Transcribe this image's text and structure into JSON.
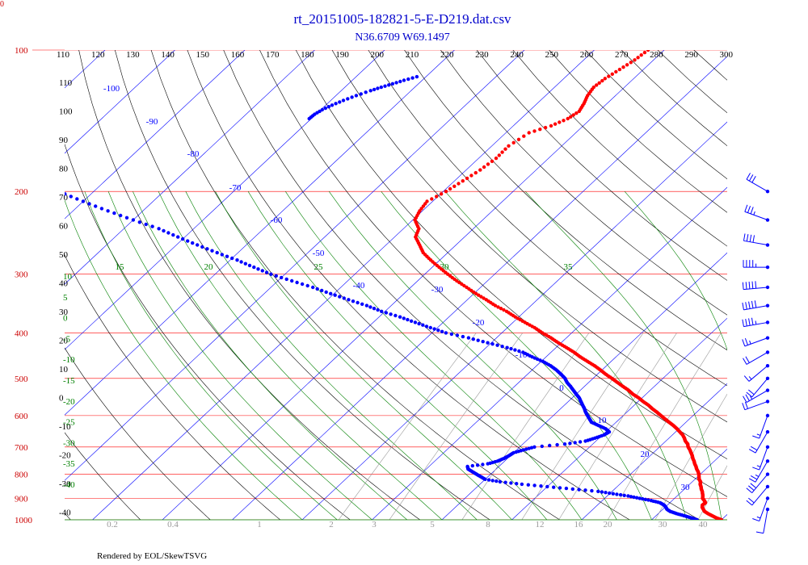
{
  "chart_data": {
    "type": "skew-t",
    "title": "rt_20151005-182821-5-E-D219.dat.csv",
    "subtitle": "N36.6709 W69.1497",
    "footer": "Rendered by EOL/SkewTSVG",
    "corner_label": "0",
    "plimits": [
      100,
      1000
    ],
    "pressure_ticks": [
      100,
      200,
      300,
      400,
      500,
      600,
      700,
      800,
      900,
      1000
    ],
    "top_temperature_ticks": [
      110,
      120,
      130,
      140,
      150,
      160,
      170,
      180,
      190,
      200,
      210,
      220,
      230,
      240,
      250,
      260,
      270,
      280,
      290,
      300
    ],
    "isotherms": [
      -100,
      -90,
      -80,
      -70,
      -60,
      -50,
      -40,
      -30,
      -20,
      -10,
      0,
      10,
      20,
      30,
      40
    ],
    "dry_adiabat_labels": [
      110,
      100,
      90,
      80,
      70,
      60,
      50,
      40,
      30,
      20,
      10,
      0,
      -10,
      -20,
      -30,
      -40
    ],
    "moist_adiabat_labels": [
      15,
      20,
      25,
      30,
      35,
      10,
      5,
      0,
      -5,
      -10,
      -15,
      -20,
      -25,
      -30,
      -35,
      -40
    ],
    "mixing_ratio_labels": [
      "0.2",
      "0.4",
      "1",
      "2",
      "3",
      "5",
      "8",
      "12",
      "16",
      "20",
      "30",
      "40"
    ],
    "temperature": {
      "name": "Temperature",
      "color": "#ff0000",
      "p": [
        1000,
        990,
        980,
        970,
        960,
        950,
        940,
        930,
        920,
        910,
        900,
        890,
        880,
        870,
        860,
        850,
        840,
        830,
        820,
        810,
        800,
        790,
        780,
        770,
        760,
        750,
        740,
        730,
        720,
        710,
        700,
        690,
        680,
        670,
        660,
        650,
        640,
        630,
        620,
        610,
        600,
        590,
        580,
        570,
        560,
        550,
        540,
        530,
        520,
        510,
        500,
        490,
        480,
        470,
        460,
        450,
        440,
        430,
        420,
        410,
        400,
        390,
        380,
        370,
        360,
        350,
        340,
        330,
        320,
        310,
        300,
        290,
        280,
        270,
        260,
        250,
        240,
        230,
        220,
        210,
        200,
        190,
        180,
        170,
        160,
        150,
        145,
        140,
        135,
        130,
        125,
        120,
        115,
        110,
        105,
        100,
        97,
        94,
        91,
        88,
        85,
        82,
        80
      ],
      "t": [
        20.0,
        18.9,
        18.0,
        17.1,
        16.3,
        15.8,
        15.3,
        15.0,
        15.1,
        14.6,
        14.0,
        13.7,
        13.3,
        12.9,
        12.4,
        12.0,
        11.5,
        11.2,
        10.6,
        10.2,
        9.8,
        9.3,
        8.7,
        8.2,
        7.6,
        7.1,
        6.5,
        6.0,
        5.4,
        4.8,
        4.1,
        3.6,
        2.8,
        2.2,
        1.5,
        0.6,
        -0.3,
        -1.3,
        -2.4,
        -3.5,
        -4.6,
        -5.7,
        -6.9,
        -8.0,
        -9.3,
        -10.5,
        -11.9,
        -13.1,
        -14.5,
        -15.9,
        -17.3,
        -18.8,
        -20.2,
        -21.7,
        -23.4,
        -25.1,
        -26.7,
        -28.5,
        -30.4,
        -32.2,
        -34.2,
        -36.1,
        -38.3,
        -40.5,
        -42.6,
        -45.1,
        -47.3,
        -49.7,
        -52.0,
        -54.4,
        -56.7,
        -59.0,
        -61.3,
        -63.5,
        -65.2,
        -67.0,
        -67.8,
        -69.7,
        -70.4,
        -70.8,
        -69.6,
        -68.8,
        -68.0,
        -67.5,
        -67.6,
        -66.7,
        -64.6,
        -63.3,
        -62.8,
        -63.3,
        -64.0,
        -64.4,
        -64.1,
        -63.4,
        -62.7,
        -62.3,
        -60.0,
        -57.6,
        -57.0,
        -55.1,
        -53.6,
        -53.2,
        -52.8
      ]
    },
    "dewpoint": {
      "name": "Dewpoint",
      "color": "#0000ff",
      "p": [
        1000,
        990,
        980,
        970,
        960,
        950,
        940,
        930,
        920,
        910,
        900,
        890,
        880,
        870,
        860,
        850,
        840,
        830,
        820,
        810,
        800,
        790,
        780,
        770,
        760,
        750,
        740,
        730,
        720,
        710,
        700,
        690,
        680,
        670,
        660,
        650,
        640,
        630,
        620,
        610,
        600,
        590,
        580,
        570,
        560,
        550,
        540,
        530,
        520,
        510,
        500,
        490,
        480,
        470,
        460,
        450,
        440,
        430,
        420,
        410,
        400,
        390,
        380,
        370,
        360,
        350,
        340,
        330,
        320,
        310,
        300,
        290,
        280,
        270,
        260,
        250,
        240,
        230,
        220,
        210,
        200,
        195,
        190
      ],
      "t": [
        16.5,
        15.3,
        14.0,
        12.6,
        11.4,
        10.6,
        10.1,
        9.5,
        8.6,
        7.0,
        5.0,
        3.0,
        0.5,
        -2.0,
        -6.0,
        -10.0,
        -14.0,
        -17.5,
        -20.0,
        -21.0,
        -22.0,
        -23.0,
        -24.0,
        -24.5,
        -22.0,
        -21.0,
        -20.5,
        -20.2,
        -20.0,
        -19.0,
        -17.9,
        -14.0,
        -11.5,
        -10.6,
        -9.8,
        -9.5,
        -10.5,
        -12.0,
        -13.5,
        -14.3,
        -15.1,
        -15.9,
        -16.6,
        -17.4,
        -18.2,
        -19.0,
        -20.0,
        -21.0,
        -22.0,
        -23.1,
        -24.0,
        -25.2,
        -26.5,
        -28.0,
        -29.8,
        -32.0,
        -34.0,
        -37.0,
        -40.5,
        -44.0,
        -48.0,
        -51.0,
        -54.0,
        -57.0,
        -60.5,
        -63.5,
        -67.0,
        -70.5,
        -74.0,
        -78.0,
        -82.0,
        -85.5,
        -89.0,
        -93.0,
        -97.0,
        -101.0,
        -105.0,
        -110.0,
        -115.0,
        -120.0,
        -125.0,
        -127.0,
        -130.0
      ]
    },
    "upper_dewpoint": {
      "name": "Dewpoint (upper)",
      "p": [
        140,
        137,
        134,
        131,
        128,
        125,
        122,
        120,
        118,
        116,
        114
      ],
      "t": [
        -100.3,
        -100.2,
        -99.8,
        -99.1,
        -98.2,
        -97.1,
        -95.8,
        -94.8,
        -93.7,
        -92.6,
        -91.3
      ]
    },
    "wind_barbs": [
      {
        "p": 200,
        "speed": 30,
        "dir": 300
      },
      {
        "p": 230,
        "speed": 35,
        "dir": 290
      },
      {
        "p": 260,
        "speed": 40,
        "dir": 280
      },
      {
        "p": 290,
        "speed": 45,
        "dir": 270
      },
      {
        "p": 320,
        "speed": 50,
        "dir": 265
      },
      {
        "p": 350,
        "speed": 50,
        "dir": 260
      },
      {
        "p": 380,
        "speed": 45,
        "dir": 260
      },
      {
        "p": 410,
        "speed": 25,
        "dir": 250
      },
      {
        "p": 440,
        "speed": 20,
        "dir": 240
      },
      {
        "p": 470,
        "speed": 15,
        "dir": 230
      },
      {
        "p": 500,
        "speed": 20,
        "dir": 220
      },
      {
        "p": 530,
        "speed": 25,
        "dir": 240
      },
      {
        "p": 560,
        "speed": 20,
        "dir": 250
      },
      {
        "p": 600,
        "speed": 15,
        "dir": 200
      },
      {
        "p": 650,
        "speed": 20,
        "dir": 210
      },
      {
        "p": 700,
        "speed": 15,
        "dir": 200
      },
      {
        "p": 750,
        "speed": 25,
        "dir": 210
      },
      {
        "p": 800,
        "speed": 30,
        "dir": 220
      },
      {
        "p": 850,
        "speed": 20,
        "dir": 220
      },
      {
        "p": 900,
        "speed": 15,
        "dir": 200
      },
      {
        "p": 950,
        "speed": 10,
        "dir": 190
      }
    ],
    "colors": {
      "isobar": "#ff0000",
      "isotherm": "#0000ff",
      "dry_adiabat": "#000000",
      "moist_adiabat": "#008000",
      "mixing_ratio": "#999999",
      "title": "#0000cc",
      "wind": "#0000ff"
    }
  }
}
